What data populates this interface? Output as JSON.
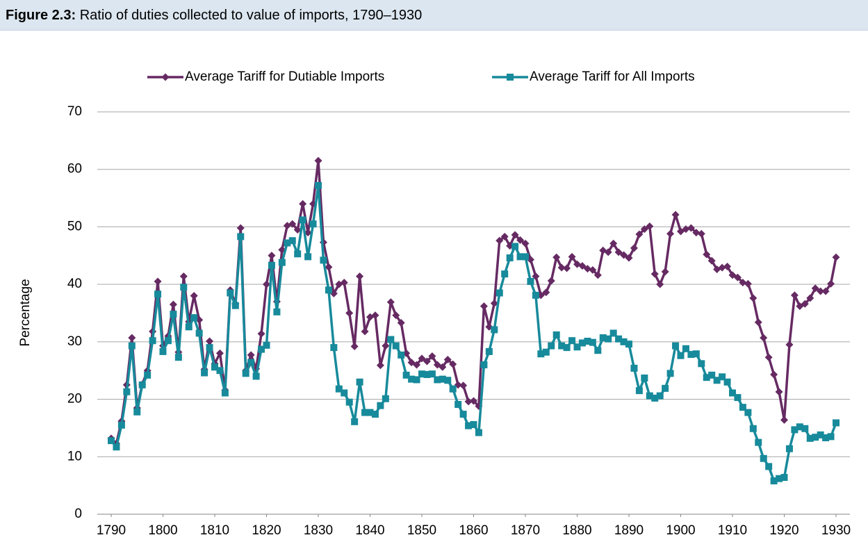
{
  "chart_data": {
    "type": "line",
    "figure_label": "Figure 2.3:",
    "title": "Ratio of duties collected to value of imports, 1790–1930",
    "y_label": "Percentage",
    "x": [
      1790,
      1791,
      1792,
      1793,
      1794,
      1795,
      1796,
      1797,
      1798,
      1799,
      1800,
      1801,
      1802,
      1803,
      1804,
      1805,
      1806,
      1807,
      1808,
      1809,
      1810,
      1811,
      1812,
      1813,
      1814,
      1815,
      1816,
      1817,
      1818,
      1819,
      1820,
      1821,
      1822,
      1823,
      1824,
      1825,
      1826,
      1827,
      1828,
      1829,
      1830,
      1831,
      1832,
      1833,
      1834,
      1835,
      1836,
      1837,
      1838,
      1839,
      1840,
      1841,
      1842,
      1843,
      1844,
      1845,
      1846,
      1847,
      1848,
      1849,
      1850,
      1851,
      1852,
      1853,
      1854,
      1855,
      1856,
      1857,
      1858,
      1859,
      1860,
      1861,
      1862,
      1863,
      1864,
      1865,
      1866,
      1867,
      1868,
      1869,
      1870,
      1871,
      1872,
      1873,
      1874,
      1875,
      1876,
      1877,
      1878,
      1879,
      1880,
      1881,
      1882,
      1883,
      1884,
      1885,
      1886,
      1887,
      1888,
      1889,
      1890,
      1891,
      1892,
      1893,
      1894,
      1895,
      1896,
      1897,
      1898,
      1899,
      1900,
      1901,
      1902,
      1903,
      1904,
      1905,
      1906,
      1907,
      1908,
      1909,
      1910,
      1911,
      1912,
      1913,
      1914,
      1915,
      1916,
      1917,
      1918,
      1919,
      1920,
      1921,
      1922,
      1923,
      1924,
      1925,
      1926,
      1927,
      1928,
      1929,
      1930
    ],
    "series": [
      {
        "name": "Average Tariff for Dutiable Imports",
        "color": "#662a63",
        "marker": "diamond",
        "values": [
          13.2,
          12.3,
          16.2,
          22.5,
          30.7,
          18.5,
          22.6,
          25.0,
          31.8,
          40.5,
          29.3,
          31.0,
          36.5,
          28.2,
          41.4,
          33.5,
          38.0,
          33.8,
          25.2,
          30.1,
          26.2,
          28.0,
          21.6,
          39.0,
          36.6,
          49.8,
          25.0,
          27.7,
          25.3,
          31.4,
          40.0,
          45.0,
          37.0,
          46.0,
          50.2,
          50.5,
          49.5,
          54.0,
          49.0,
          54.0,
          61.5,
          47.3,
          43.0,
          38.4,
          40.0,
          40.3,
          35.0,
          29.2,
          41.4,
          31.8,
          34.3,
          34.6,
          25.9,
          29.3,
          36.9,
          34.6,
          33.3,
          28.0,
          26.4,
          26.0,
          27.1,
          26.6,
          27.5,
          26.0,
          25.6,
          26.9,
          26.1,
          22.5,
          22.4,
          19.6,
          19.7,
          18.8,
          36.2,
          32.6,
          36.7,
          47.6,
          48.3,
          46.7,
          48.6,
          47.7,
          47.1,
          44.3,
          41.4,
          38.1,
          38.6,
          40.6,
          44.7,
          42.9,
          42.8,
          44.8,
          43.5,
          43.2,
          42.7,
          42.5,
          41.6,
          45.9,
          45.6,
          47.1,
          45.6,
          45.1,
          44.6,
          46.3,
          48.7,
          49.6,
          50.1,
          41.8,
          40.0,
          42.2,
          48.8,
          52.1,
          49.2,
          49.6,
          49.8,
          49.0,
          48.8,
          45.2,
          44.1,
          42.6,
          42.9,
          43.1,
          41.6,
          41.2,
          40.3,
          40.1,
          37.6,
          33.4,
          30.7,
          27.3,
          24.3,
          21.3,
          16.4,
          29.5,
          38.1,
          36.2,
          36.6,
          37.6,
          39.3,
          38.8,
          38.8,
          40.1,
          44.7
        ]
      },
      {
        "name": "Average Tariff for All Imports",
        "color": "#178a9b",
        "marker": "square",
        "values": [
          12.8,
          11.7,
          15.5,
          21.3,
          29.3,
          17.8,
          22.5,
          24.2,
          30.2,
          38.3,
          28.3,
          30.2,
          34.8,
          27.3,
          39.5,
          32.6,
          34.2,
          31.5,
          24.6,
          29.0,
          25.6,
          25.0,
          21.1,
          38.5,
          36.3,
          48.3,
          24.5,
          26.4,
          24.0,
          28.7,
          29.4,
          43.3,
          35.2,
          43.8,
          47.2,
          47.6,
          45.3,
          51.2,
          44.8,
          50.5,
          57.2,
          44.2,
          39.0,
          29.0,
          21.8,
          21.1,
          19.5,
          16.1,
          23.0,
          17.7,
          17.7,
          17.4,
          18.9,
          20.1,
          30.4,
          29.3,
          27.7,
          24.2,
          23.5,
          23.4,
          24.4,
          24.3,
          24.4,
          23.4,
          23.5,
          23.3,
          21.8,
          19.1,
          17.4,
          15.4,
          15.6,
          14.2,
          26.0,
          28.3,
          32.1,
          38.5,
          41.8,
          44.6,
          46.6,
          44.8,
          44.8,
          40.5,
          38.1,
          27.9,
          28.2,
          29.3,
          31.2,
          29.3,
          29.0,
          30.2,
          29.1,
          29.8,
          30.1,
          29.9,
          28.5,
          30.7,
          30.5,
          31.5,
          30.5,
          30.0,
          29.6,
          25.4,
          21.5,
          23.7,
          20.6,
          20.2,
          20.6,
          21.9,
          24.5,
          29.3,
          27.6,
          28.8,
          27.8,
          27.9,
          26.2,
          23.8,
          24.2,
          23.3,
          23.9,
          23.0,
          21.1,
          20.3,
          18.6,
          17.7,
          14.9,
          12.5,
          9.7,
          8.3,
          5.8,
          6.2,
          6.4,
          11.4,
          14.7,
          15.2,
          14.9,
          13.2,
          13.4,
          13.8,
          13.3,
          13.5,
          15.9
        ]
      }
    ],
    "xlim": [
      1790,
      1930
    ],
    "xticks": [
      1790,
      1800,
      1810,
      1820,
      1830,
      1840,
      1850,
      1860,
      1870,
      1880,
      1890,
      1900,
      1910,
      1920,
      1930
    ],
    "ylim": [
      0,
      70
    ],
    "yticks": [
      0,
      10,
      20,
      30,
      40,
      50,
      60,
      70
    ],
    "grid": true,
    "legend": "top"
  }
}
